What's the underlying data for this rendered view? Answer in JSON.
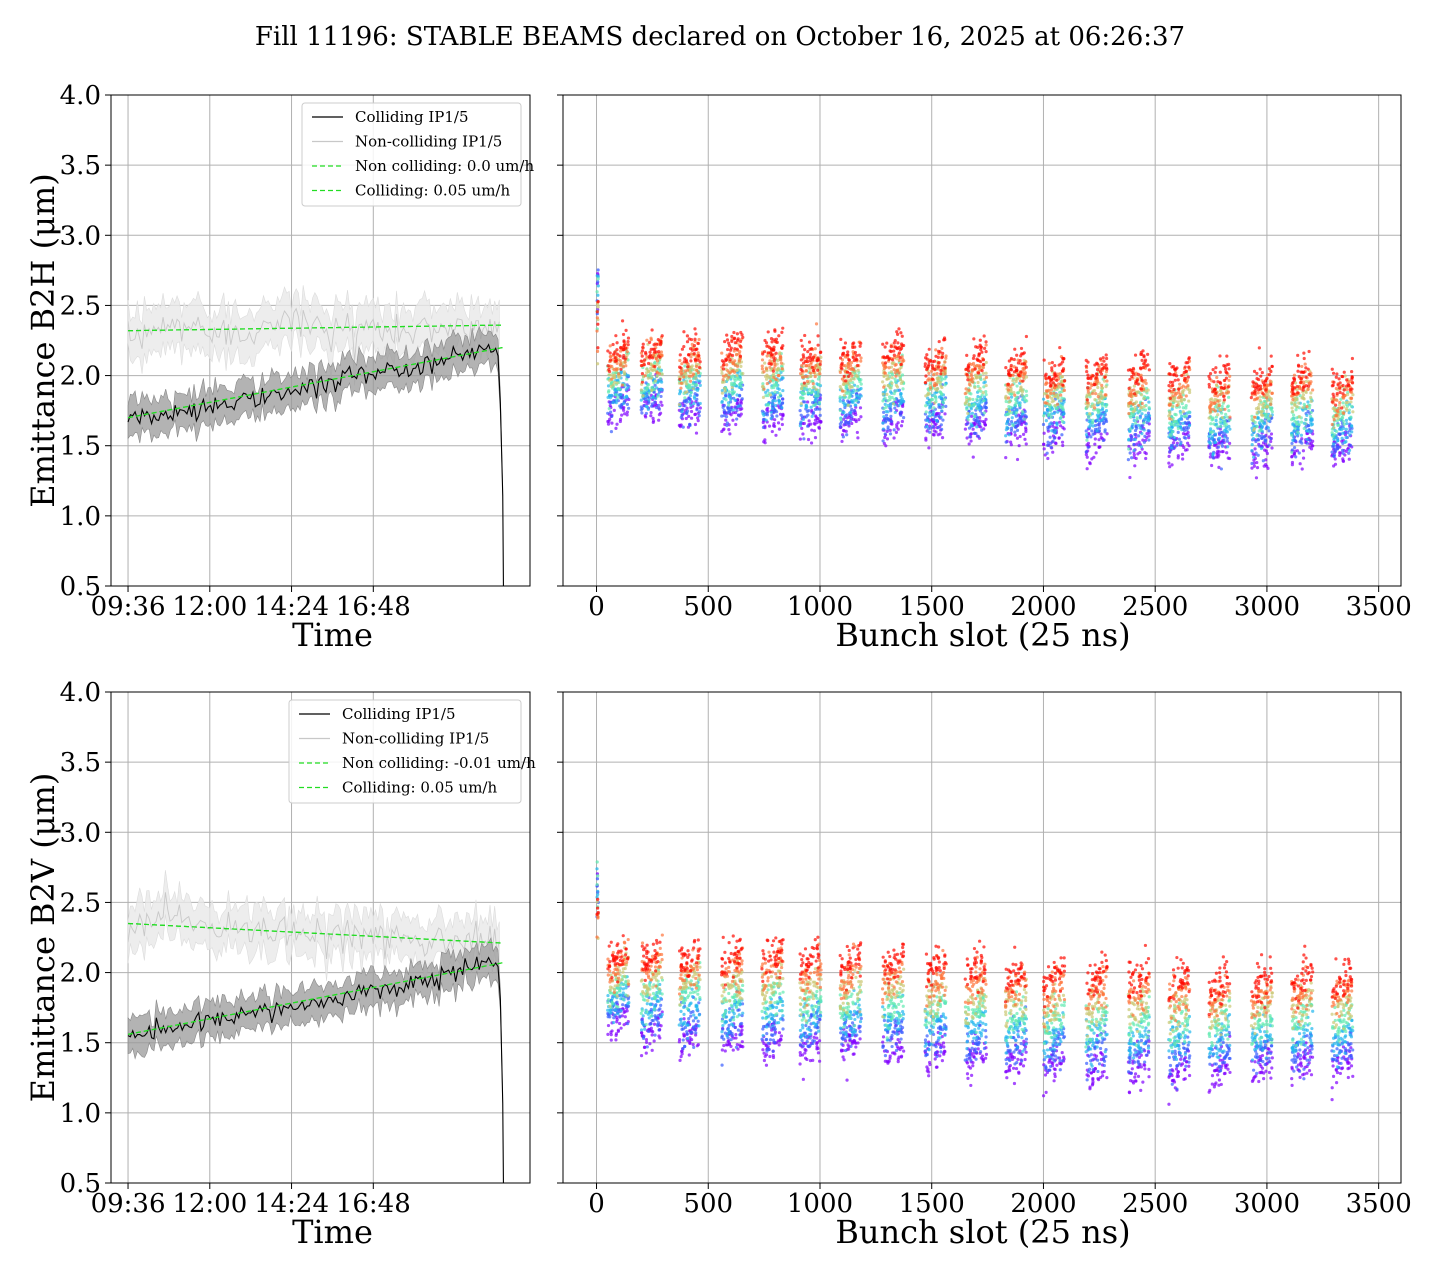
{
  "figure": {
    "title": "Fill 11196: STABLE BEAMS declared on October 16, 2025 at 06:26:37",
    "colors": {
      "colliding": "#000000",
      "colliding_band": "#999999",
      "non_colliding": "#c8c8c8",
      "non_colliding_band": "#e8e8e8",
      "fit": "#22dd22",
      "grid": "#b0b0b0"
    }
  },
  "chart_data": [
    {
      "type": "line",
      "panel": "top-left",
      "xlabel": "Time",
      "ylabel": "Emittance B2H (μm)",
      "xticks": [
        "09:36",
        "12:00",
        "14:24",
        "16:48"
      ],
      "yticks": [
        "0.5",
        "1.0",
        "1.5",
        "2.0",
        "2.5",
        "3.0",
        "3.5",
        "4.0"
      ],
      "ylim": [
        0.5,
        4.0
      ],
      "xlim_hours": [
        9.1,
        21.4
      ],
      "grid": true,
      "legend_position": "upper right",
      "series": [
        {
          "name": "Colliding IP1/5",
          "style": "solid",
          "color": "#000000",
          "x_hours": [
            9.6,
            10.5,
            11.5,
            12.5,
            13.5,
            14.5,
            15.5,
            16.5,
            17.5,
            18.5,
            19.5,
            20.3,
            20.5,
            20.6
          ],
          "values": [
            1.7,
            1.72,
            1.76,
            1.8,
            1.85,
            1.88,
            1.95,
            2.0,
            2.05,
            2.1,
            2.15,
            2.2,
            2.15,
            1.15
          ],
          "band": [
            0.12,
            0.13,
            0.13,
            0.12,
            0.12,
            0.12,
            0.12,
            0.12,
            0.12,
            0.12,
            0.12,
            0.12,
            0.12,
            0.0
          ]
        },
        {
          "name": "Non-colliding IP1/5",
          "style": "solid",
          "color": "#c8c8c8",
          "x_hours": [
            9.6,
            10.5,
            11.5,
            12.5,
            13.5,
            14.5,
            15.5,
            16.5,
            17.5,
            18.5,
            19.5,
            20.3,
            20.5
          ],
          "values": [
            2.22,
            2.34,
            2.36,
            2.3,
            2.35,
            2.4,
            2.32,
            2.35,
            2.3,
            2.33,
            2.36,
            2.35,
            2.3
          ],
          "band": [
            0.17,
            0.16,
            0.16,
            0.16,
            0.16,
            0.16,
            0.16,
            0.16,
            0.16,
            0.16,
            0.16,
            0.16,
            0.16
          ]
        },
        {
          "name": "Non colliding: 0.0 um/h",
          "style": "dashed",
          "color": "#22dd22",
          "x_hours": [
            9.6,
            20.6
          ],
          "values": [
            2.32,
            2.36
          ]
        },
        {
          "name": "Colliding: 0.05 um/h",
          "style": "dashed",
          "color": "#22dd22",
          "x_hours": [
            9.6,
            20.6
          ],
          "values": [
            1.7,
            2.2
          ]
        }
      ]
    },
    {
      "type": "scatter",
      "panel": "top-right",
      "xlabel": "Bunch slot (25 ns)",
      "xticks": [
        "0",
        "500",
        "1000",
        "1500",
        "2000",
        "2500",
        "3000",
        "3500"
      ],
      "xlim": [
        -150,
        3600
      ],
      "ylim": [
        0.5,
        4.0
      ],
      "grid": true,
      "colormap": "rainbow (purple = early, red = late)",
      "trains_start_slot": [
        50,
        200,
        370,
        560,
        740,
        910,
        1090,
        1280,
        1470,
        1650,
        1830,
        2000,
        2190,
        2380,
        2560,
        2740,
        2930,
        3110,
        3290
      ],
      "levels_start": [
        1.75,
        1.75,
        1.72,
        1.7,
        1.68,
        1.66,
        1.65,
        1.64,
        1.62,
        1.6,
        1.58,
        1.56,
        1.52,
        1.5,
        1.48,
        1.45,
        1.45,
        1.48,
        1.45
      ],
      "levels_end": [
        2.15,
        2.15,
        2.15,
        2.18,
        2.15,
        2.12,
        2.12,
        2.15,
        2.1,
        2.1,
        2.05,
        2.0,
        2.02,
        2.0,
        1.98,
        1.95,
        1.95,
        2.0,
        1.92
      ]
    },
    {
      "type": "line",
      "panel": "bottom-left",
      "xlabel": "Time",
      "ylabel": "Emittance B2V (μm)",
      "xticks": [
        "09:36",
        "12:00",
        "14:24",
        "16:48"
      ],
      "yticks": [
        "0.5",
        "1.0",
        "1.5",
        "2.0",
        "2.5",
        "3.0",
        "3.5",
        "4.0"
      ],
      "ylim": [
        0.5,
        4.0
      ],
      "xlim_hours": [
        9.1,
        21.4
      ],
      "grid": true,
      "legend_position": "upper right",
      "series": [
        {
          "name": "Colliding IP1/5",
          "style": "solid",
          "color": "#000000",
          "x_hours": [
            9.6,
            10.5,
            11.5,
            12.5,
            13.5,
            14.5,
            15.5,
            16.5,
            17.5,
            18.5,
            19.5,
            20.3,
            20.5,
            20.6
          ],
          "values": [
            1.52,
            1.6,
            1.65,
            1.68,
            1.72,
            1.76,
            1.8,
            1.85,
            1.9,
            1.95,
            2.02,
            2.08,
            2.05,
            1.1
          ],
          "band": [
            0.12,
            0.12,
            0.12,
            0.12,
            0.12,
            0.12,
            0.12,
            0.12,
            0.12,
            0.12,
            0.12,
            0.12,
            0.12,
            0.0
          ]
        },
        {
          "name": "Non-colliding IP1/5",
          "style": "solid",
          "color": "#c8c8c8",
          "x_hours": [
            9.6,
            10.5,
            11.5,
            12.5,
            13.5,
            14.5,
            15.5,
            16.5,
            17.5,
            18.5,
            19.5,
            20.3,
            20.5
          ],
          "values": [
            2.25,
            2.38,
            2.36,
            2.32,
            2.3,
            2.3,
            2.28,
            2.26,
            2.25,
            2.22,
            2.24,
            2.26,
            2.24
          ],
          "band": [
            0.15,
            0.15,
            0.15,
            0.15,
            0.15,
            0.15,
            0.15,
            0.15,
            0.15,
            0.15,
            0.15,
            0.15,
            0.15
          ]
        },
        {
          "name": "Non colliding: -0.01 um/h",
          "style": "dashed",
          "color": "#22dd22",
          "x_hours": [
            9.6,
            20.6
          ],
          "values": [
            2.35,
            2.21
          ]
        },
        {
          "name": "Colliding: 0.05 um/h",
          "style": "dashed",
          "color": "#22dd22",
          "x_hours": [
            9.6,
            20.6
          ],
          "values": [
            1.56,
            2.07
          ]
        }
      ]
    },
    {
      "type": "scatter",
      "panel": "bottom-right",
      "xlabel": "Bunch slot (25 ns)",
      "xticks": [
        "0",
        "500",
        "1000",
        "1500",
        "2000",
        "2500",
        "3000",
        "3500"
      ],
      "xlim": [
        -150,
        3600
      ],
      "ylim": [
        0.5,
        4.0
      ],
      "grid": true,
      "colormap": "rainbow (purple = early, red = late)",
      "trains_start_slot": [
        50,
        200,
        370,
        560,
        740,
        910,
        1090,
        1280,
        1470,
        1650,
        1830,
        2000,
        2190,
        2380,
        2560,
        2740,
        2930,
        3110,
        3290
      ],
      "levels_start": [
        1.65,
        1.55,
        1.52,
        1.5,
        1.48,
        1.45,
        1.45,
        1.45,
        1.4,
        1.38,
        1.35,
        1.32,
        1.3,
        1.3,
        1.28,
        1.28,
        1.32,
        1.32,
        1.32
      ],
      "levels_end": [
        2.1,
        2.1,
        2.1,
        2.1,
        2.1,
        2.08,
        2.05,
        2.05,
        2.02,
        2.0,
        1.98,
        1.95,
        1.95,
        1.95,
        1.92,
        1.9,
        1.92,
        1.95,
        1.92
      ]
    }
  ]
}
